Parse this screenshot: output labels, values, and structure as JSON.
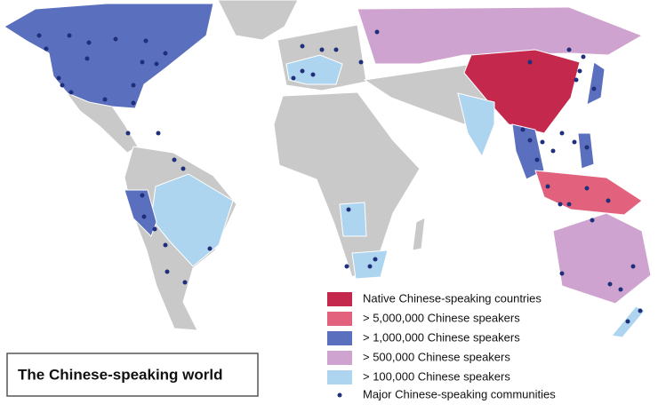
{
  "title": "The Chinese-speaking world",
  "legend": [
    {
      "label": "Native Chinese-speaking countries",
      "color": "#c4284c"
    },
    {
      "label": "> 5,000,000 Chinese speakers",
      "color": "#e2627e"
    },
    {
      "label": "> 1,000,000 Chinese speakers",
      "color": "#5a6fbd"
    },
    {
      "label": "> 500,000 Chinese speakers",
      "color": "#cfa3cf"
    },
    {
      "label": "> 100,000 Chinese speakers",
      "color": "#aed5f0"
    }
  ],
  "communities": {
    "label": "Major Chinese-speaking communities",
    "color": "#1f2f7a"
  }
}
